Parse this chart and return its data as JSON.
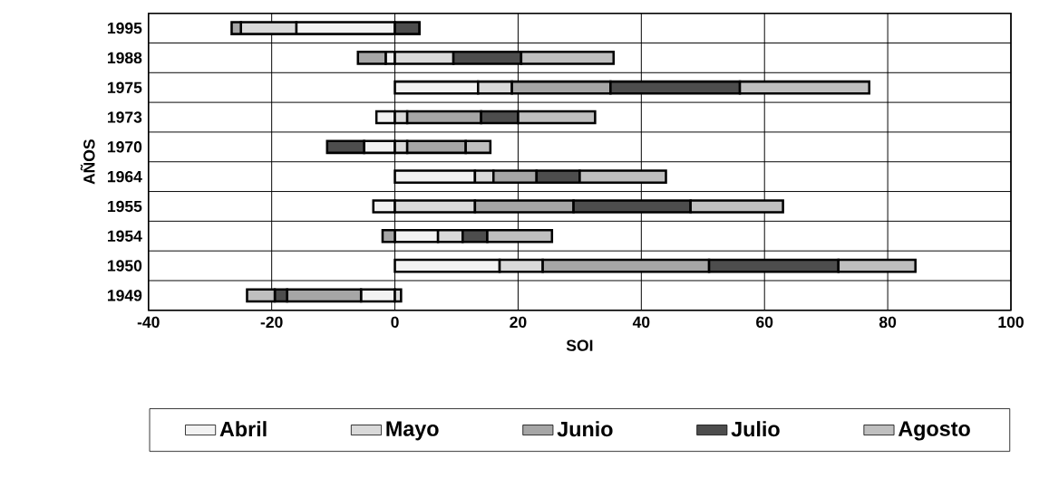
{
  "chart_data": {
    "type": "bar",
    "orientation": "horizontal",
    "stacked": true,
    "xlabel": "SOI",
    "ylabel": "AÑOS",
    "categories": [
      "1995",
      "1988",
      "1975",
      "1973",
      "1970",
      "1964",
      "1955",
      "1954",
      "1950",
      "1949"
    ],
    "series": [
      {
        "name": "Abril",
        "color": "#f2f2f2",
        "values": [
          -16,
          -1.5,
          13.5,
          -3,
          -5,
          13,
          -3.5,
          7,
          17,
          -5.5
        ]
      },
      {
        "name": "Mayo",
        "color": "#d9d9d9",
        "values": [
          -9,
          9.5,
          5.5,
          2,
          2,
          3,
          13,
          4,
          7,
          1
        ]
      },
      {
        "name": "Junio",
        "color": "#a6a6a6",
        "values": [
          -1.5,
          -4.5,
          16,
          12,
          9.5,
          7,
          16,
          -2,
          27,
          -12
        ]
      },
      {
        "name": "Julio",
        "color": "#4d4d4d",
        "values": [
          4,
          11,
          21,
          6,
          -6,
          7,
          19,
          4,
          21,
          -2
        ]
      },
      {
        "name": "Agosto",
        "color": "#bfbfbf",
        "values": [
          0,
          15,
          21,
          12.5,
          4,
          14,
          15,
          10.5,
          12.5,
          -4.5
        ]
      }
    ],
    "xlim": [
      -40,
      100
    ],
    "xticks": [
      -40,
      -20,
      0,
      20,
      40,
      60,
      80,
      100
    ],
    "grid": true,
    "legend": "bottom"
  }
}
